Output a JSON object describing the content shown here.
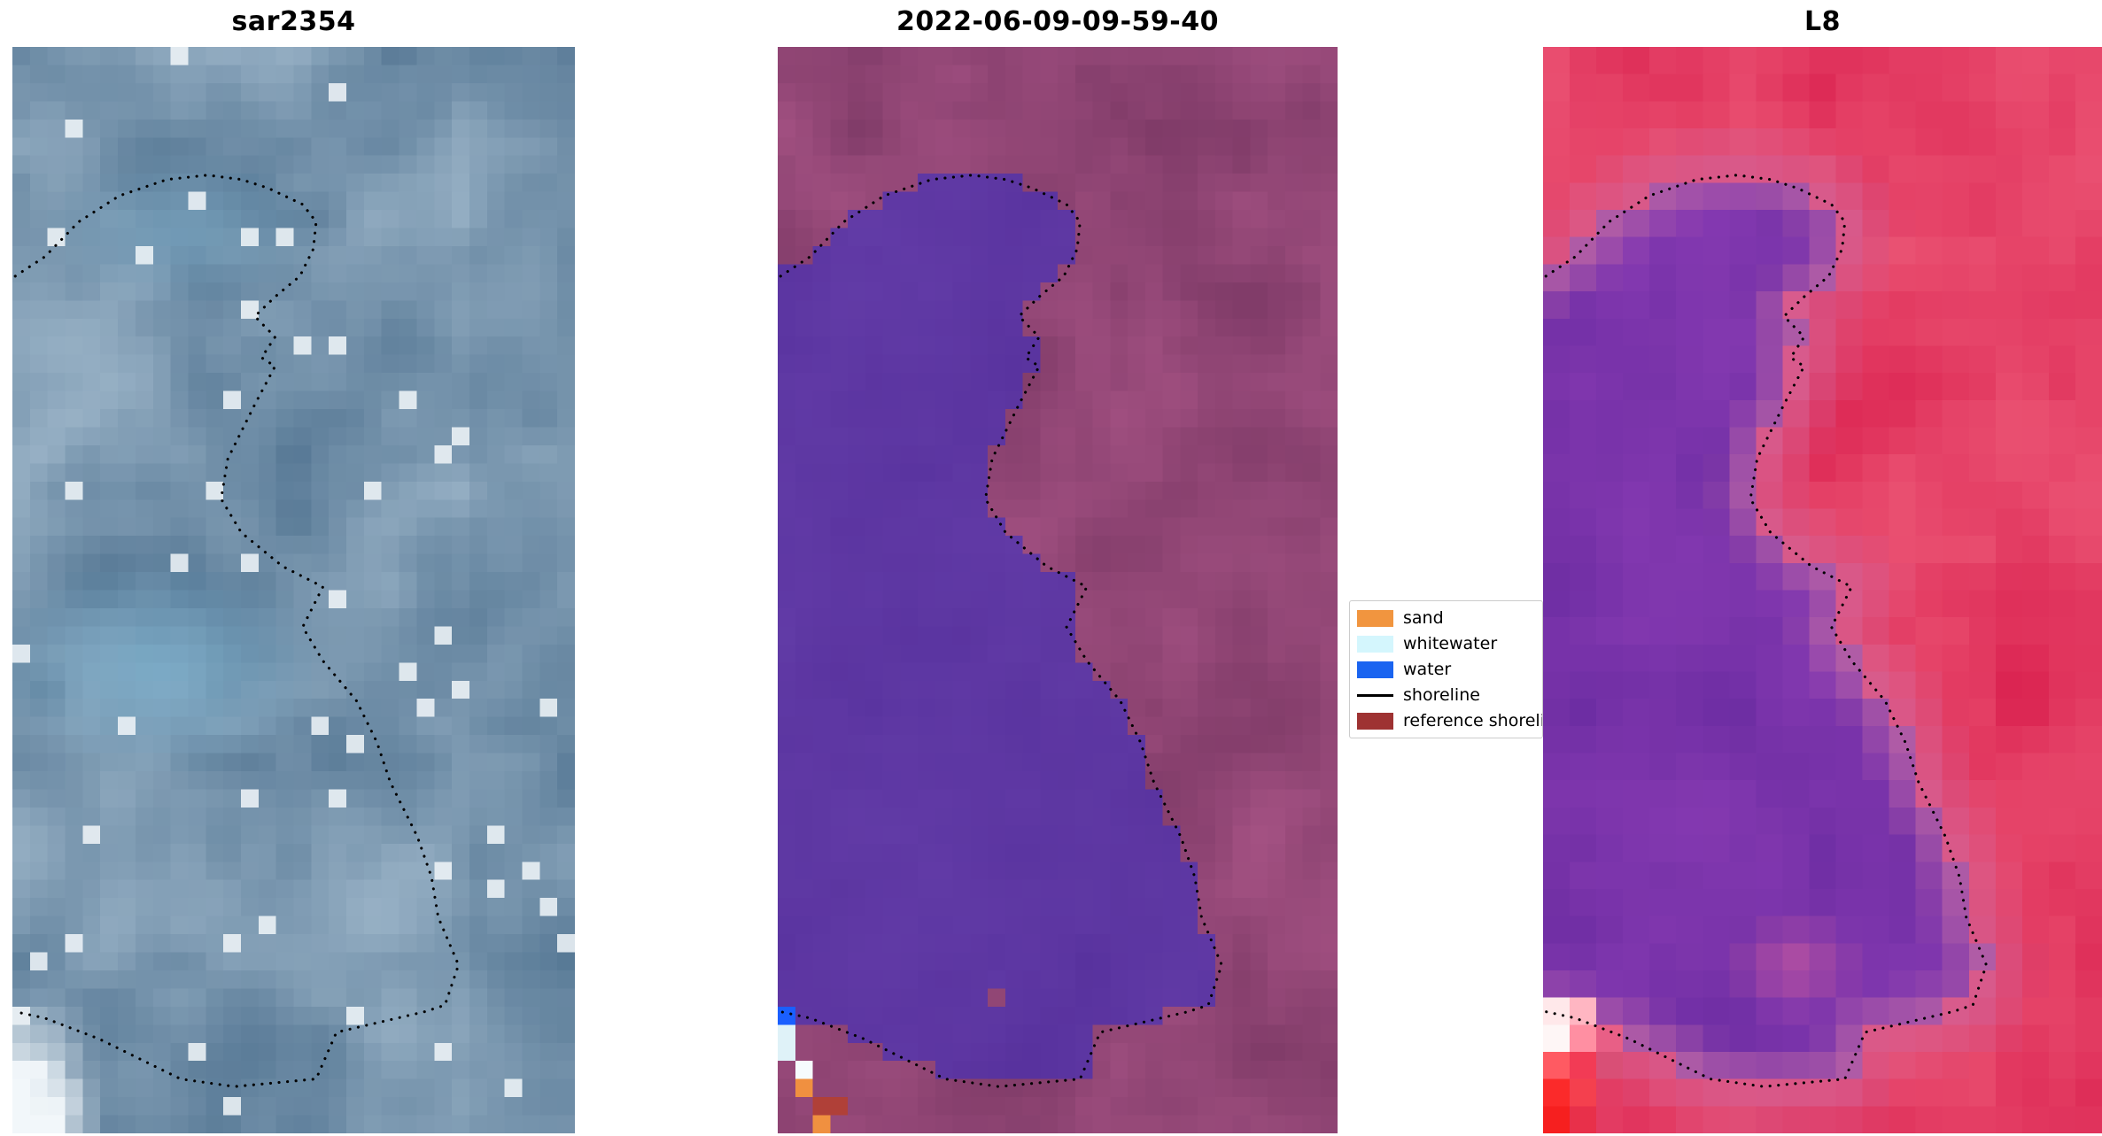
{
  "figure": {
    "background": "#ffffff",
    "panels": [
      {
        "title": "sar2354",
        "kind": "sar",
        "grid": [
          32,
          60
        ],
        "palette": {
          "base_dark": "#4d708e",
          "base_light": "#a2bacd",
          "bright": "#f2f7fa",
          "cyan_patch": "#79b5d4"
        }
      },
      {
        "title": "2022-06-09-09-59-40",
        "kind": "classified",
        "grid": [
          32,
          60
        ],
        "palette": {
          "water_fill": "#57319d",
          "water_fill2": "#6a43ae",
          "bg_dark": "#7a3864",
          "bg_light": "#a85486",
          "blue": "#1a5fff",
          "whitewater": "#dff2f8",
          "bright": "#f6fbfd",
          "sand": "#f09040",
          "ref_red": "#b04038"
        }
      },
      {
        "title": "L8",
        "kind": "l8",
        "grid": [
          21,
          40
        ],
        "palette": {
          "bg_dark": "#d81a4a",
          "bg_light": "#ee5c7a",
          "edge_pink": "#d878aa",
          "water_core": "#682ba0",
          "water_light": "#8a3cb4",
          "bright": "#fff0f2"
        }
      }
    ],
    "legend": {
      "items": [
        {
          "label": "sand",
          "color": "#f1953f",
          "type": "patch"
        },
        {
          "label": "whitewater",
          "color": "#d4f6fd",
          "type": "patch"
        },
        {
          "label": "water",
          "color": "#1a64f0",
          "type": "patch"
        },
        {
          "label": "shoreline",
          "color": "#000000",
          "type": "line"
        },
        {
          "label": "reference shoreline",
          "color": "#9e3232",
          "type": "patch"
        }
      ]
    }
  },
  "chart_data": {
    "type": "image-panels",
    "description": "Three satellite image panels (SAR, classified optical, Landsat-8) of the same coastal lagoon with a dotted detected shoreline overlay",
    "panel_titles": [
      "sar2354",
      "2022-06-09-09-59-40",
      "L8"
    ],
    "legend_entries": [
      "sand",
      "whitewater",
      "water",
      "shoreline",
      "reference shoreline"
    ],
    "shoreline_normalized": [
      [
        0.005,
        0.211
      ],
      [
        0.058,
        0.193
      ],
      [
        0.118,
        0.161
      ],
      [
        0.19,
        0.137
      ],
      [
        0.275,
        0.122
      ],
      [
        0.347,
        0.118
      ],
      [
        0.407,
        0.122
      ],
      [
        0.455,
        0.13
      ],
      [
        0.516,
        0.145
      ],
      [
        0.54,
        0.161
      ],
      [
        0.535,
        0.186
      ],
      [
        0.511,
        0.211
      ],
      [
        0.467,
        0.23
      ],
      [
        0.431,
        0.248
      ],
      [
        0.467,
        0.267
      ],
      [
        0.443,
        0.286
      ],
      [
        0.467,
        0.294
      ],
      [
        0.431,
        0.329
      ],
      [
        0.383,
        0.379
      ],
      [
        0.371,
        0.416
      ],
      [
        0.407,
        0.447
      ],
      [
        0.48,
        0.478
      ],
      [
        0.552,
        0.497
      ],
      [
        0.516,
        0.534
      ],
      [
        0.552,
        0.565
      ],
      [
        0.612,
        0.602
      ],
      [
        0.648,
        0.64
      ],
      [
        0.672,
        0.677
      ],
      [
        0.696,
        0.702
      ],
      [
        0.72,
        0.727
      ],
      [
        0.745,
        0.764
      ],
      [
        0.757,
        0.801
      ],
      [
        0.793,
        0.845
      ],
      [
        0.769,
        0.882
      ],
      [
        0.733,
        0.888
      ],
      [
        0.576,
        0.907
      ],
      [
        0.54,
        0.95
      ],
      [
        0.395,
        0.957
      ],
      [
        0.299,
        0.95
      ],
      [
        0.154,
        0.913
      ],
      [
        0.058,
        0.894
      ],
      [
        0.005,
        0.888
      ]
    ]
  }
}
